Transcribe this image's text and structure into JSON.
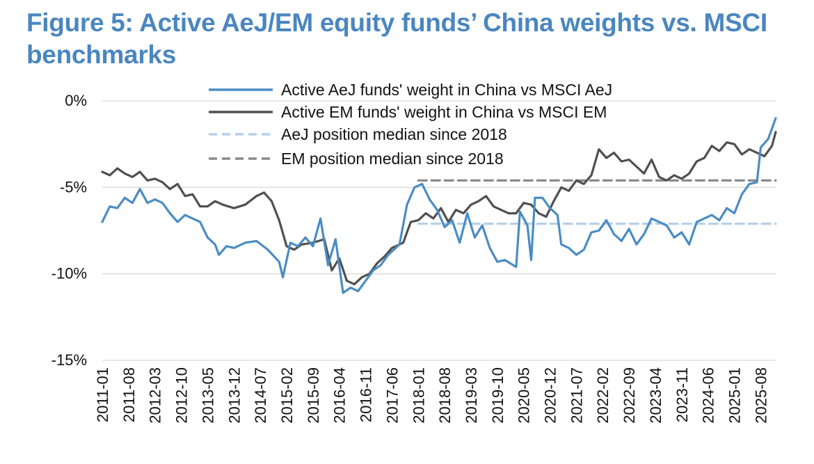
{
  "title_line1": "Figure 5: Active AeJ/EM equity funds’ China weights vs. MSCI",
  "title_line2": "benchmarks",
  "colors": {
    "title": "#4a86c0",
    "aej": "#4a8cc4",
    "em": "#4f4f4f",
    "aej_median": "#b5d0e8",
    "em_median": "#8a8a8a"
  },
  "chart_data": {
    "type": "line",
    "title": "Figure 5: Active AeJ/EM equity funds’ China weights vs. MSCI benchmarks",
    "xlabel": "",
    "ylabel": "",
    "ylim": [
      -15,
      0
    ],
    "y_ticks": [
      0,
      -5,
      -10,
      -15
    ],
    "y_tick_labels": [
      "0%",
      "-5%",
      "-10%",
      "-15%"
    ],
    "x_start": "2011-01",
    "x_end": "2025-12",
    "x_tick_labels": [
      "2011-01",
      "2011-08",
      "2012-03",
      "2012-10",
      "2013-05",
      "2013-12",
      "2014-07",
      "2015-02",
      "2015-09",
      "2016-04",
      "2016-11",
      "2017-06",
      "2018-01",
      "2018-08",
      "2019-03",
      "2019-10",
      "2020-05",
      "2020-12",
      "2021-07",
      "2022-02",
      "2022-09",
      "2023-04",
      "2023-11",
      "2024-06",
      "2025-01",
      "2025-08"
    ],
    "legend_position": "top-right",
    "grid": "horizontal",
    "series": [
      {
        "name": "Active AeJ funds' weight in China vs MSCI AeJ",
        "style": "solid",
        "color": "#4a8cc4",
        "points": [
          [
            "2011-01",
            -7.0
          ],
          [
            "2011-03",
            -6.1
          ],
          [
            "2011-05",
            -6.2
          ],
          [
            "2011-07",
            -5.6
          ],
          [
            "2011-09",
            -5.9
          ],
          [
            "2011-11",
            -5.1
          ],
          [
            "2012-01",
            -5.9
          ],
          [
            "2012-03",
            -5.7
          ],
          [
            "2012-05",
            -5.9
          ],
          [
            "2012-07",
            -6.5
          ],
          [
            "2012-09",
            -7.0
          ],
          [
            "2012-11",
            -6.6
          ],
          [
            "2013-01",
            -6.8
          ],
          [
            "2013-03",
            -7.0
          ],
          [
            "2013-05",
            -7.9
          ],
          [
            "2013-07",
            -8.3
          ],
          [
            "2013-08",
            -8.9
          ],
          [
            "2013-10",
            -8.4
          ],
          [
            "2013-12",
            -8.5
          ],
          [
            "2014-03",
            -8.2
          ],
          [
            "2014-06",
            -8.1
          ],
          [
            "2014-09",
            -8.6
          ],
          [
            "2014-12",
            -9.3
          ],
          [
            "2015-01",
            -10.2
          ],
          [
            "2015-03",
            -8.2
          ],
          [
            "2015-05",
            -8.4
          ],
          [
            "2015-07",
            -7.9
          ],
          [
            "2015-09",
            -8.4
          ],
          [
            "2015-11",
            -6.8
          ],
          [
            "2016-01",
            -9.5
          ],
          [
            "2016-03",
            -8.0
          ],
          [
            "2016-05",
            -11.1
          ],
          [
            "2016-07",
            -10.8
          ],
          [
            "2016-09",
            -11.0
          ],
          [
            "2016-11",
            -10.4
          ],
          [
            "2017-01",
            -9.8
          ],
          [
            "2017-03",
            -9.5
          ],
          [
            "2017-05",
            -8.9
          ],
          [
            "2017-08",
            -8.3
          ],
          [
            "2017-10",
            -6.0
          ],
          [
            "2017-12",
            -5.0
          ],
          [
            "2018-02",
            -4.8
          ],
          [
            "2018-04",
            -5.7
          ],
          [
            "2018-06",
            -6.3
          ],
          [
            "2018-08",
            -7.3
          ],
          [
            "2018-10",
            -6.9
          ],
          [
            "2018-12",
            -8.2
          ],
          [
            "2019-02",
            -6.5
          ],
          [
            "2019-04",
            -7.9
          ],
          [
            "2019-06",
            -7.2
          ],
          [
            "2019-08",
            -8.5
          ],
          [
            "2019-10",
            -9.3
          ],
          [
            "2019-12",
            -9.2
          ],
          [
            "2020-03",
            -9.6
          ],
          [
            "2020-04",
            -6.4
          ],
          [
            "2020-06",
            -7.2
          ],
          [
            "2020-07",
            -9.2
          ],
          [
            "2020-08",
            -5.6
          ],
          [
            "2020-10",
            -5.6
          ],
          [
            "2020-12",
            -6.2
          ],
          [
            "2021-02",
            -6.6
          ],
          [
            "2021-03",
            -8.3
          ],
          [
            "2021-05",
            -8.5
          ],
          [
            "2021-07",
            -8.9
          ],
          [
            "2021-09",
            -8.6
          ],
          [
            "2021-11",
            -7.6
          ],
          [
            "2022-01",
            -7.5
          ],
          [
            "2022-03",
            -6.9
          ],
          [
            "2022-05",
            -7.7
          ],
          [
            "2022-07",
            -8.1
          ],
          [
            "2022-09",
            -7.4
          ],
          [
            "2022-11",
            -8.3
          ],
          [
            "2023-01",
            -7.7
          ],
          [
            "2023-03",
            -6.8
          ],
          [
            "2023-05",
            -7.0
          ],
          [
            "2023-07",
            -7.2
          ],
          [
            "2023-09",
            -7.9
          ],
          [
            "2023-11",
            -7.6
          ],
          [
            "2024-01",
            -8.3
          ],
          [
            "2024-03",
            -7.0
          ],
          [
            "2024-05",
            -6.8
          ],
          [
            "2024-07",
            -6.6
          ],
          [
            "2024-09",
            -6.9
          ],
          [
            "2024-11",
            -6.2
          ],
          [
            "2025-01",
            -6.5
          ],
          [
            "2025-03",
            -5.4
          ],
          [
            "2025-05",
            -4.8
          ],
          [
            "2025-07",
            -4.7
          ],
          [
            "2025-08",
            -2.7
          ],
          [
            "2025-10",
            -2.2
          ],
          [
            "2025-12",
            -1.0
          ]
        ]
      },
      {
        "name": "Active EM funds' weight in China vs MSCI EM",
        "style": "solid",
        "color": "#4f4f4f",
        "points": [
          [
            "2011-01",
            -4.1
          ],
          [
            "2011-03",
            -4.3
          ],
          [
            "2011-05",
            -3.9
          ],
          [
            "2011-07",
            -4.2
          ],
          [
            "2011-09",
            -4.4
          ],
          [
            "2011-11",
            -4.1
          ],
          [
            "2012-01",
            -4.6
          ],
          [
            "2012-03",
            -4.5
          ],
          [
            "2012-05",
            -4.7
          ],
          [
            "2012-07",
            -5.1
          ],
          [
            "2012-09",
            -4.8
          ],
          [
            "2012-11",
            -5.5
          ],
          [
            "2013-01",
            -5.4
          ],
          [
            "2013-03",
            -6.1
          ],
          [
            "2013-05",
            -6.1
          ],
          [
            "2013-07",
            -5.8
          ],
          [
            "2013-09",
            -6.0
          ],
          [
            "2013-12",
            -6.2
          ],
          [
            "2014-03",
            -6.0
          ],
          [
            "2014-06",
            -5.5
          ],
          [
            "2014-08",
            -5.3
          ],
          [
            "2014-10",
            -5.8
          ],
          [
            "2014-12",
            -6.9
          ],
          [
            "2015-02",
            -8.4
          ],
          [
            "2015-04",
            -8.6
          ],
          [
            "2015-06",
            -8.3
          ],
          [
            "2015-09",
            -8.2
          ],
          [
            "2015-12",
            -8.0
          ],
          [
            "2016-02",
            -9.8
          ],
          [
            "2016-04",
            -9.1
          ],
          [
            "2016-06",
            -10.4
          ],
          [
            "2016-08",
            -10.6
          ],
          [
            "2016-10",
            -10.2
          ],
          [
            "2016-12",
            -10.0
          ],
          [
            "2017-02",
            -9.4
          ],
          [
            "2017-04",
            -9.0
          ],
          [
            "2017-06",
            -8.5
          ],
          [
            "2017-09",
            -8.2
          ],
          [
            "2017-11",
            -7.0
          ],
          [
            "2018-01",
            -6.9
          ],
          [
            "2018-03",
            -6.5
          ],
          [
            "2018-05",
            -6.8
          ],
          [
            "2018-07",
            -6.2
          ],
          [
            "2018-09",
            -7.0
          ],
          [
            "2018-11",
            -6.3
          ],
          [
            "2019-01",
            -6.5
          ],
          [
            "2019-03",
            -6.0
          ],
          [
            "2019-05",
            -5.8
          ],
          [
            "2019-07",
            -5.5
          ],
          [
            "2019-09",
            -6.1
          ],
          [
            "2019-11",
            -6.3
          ],
          [
            "2020-01",
            -6.5
          ],
          [
            "2020-03",
            -6.5
          ],
          [
            "2020-05",
            -5.9
          ],
          [
            "2020-07",
            -6.0
          ],
          [
            "2020-09",
            -6.5
          ],
          [
            "2020-11",
            -6.7
          ],
          [
            "2021-01",
            -5.8
          ],
          [
            "2021-03",
            -5.0
          ],
          [
            "2021-05",
            -5.2
          ],
          [
            "2021-07",
            -4.6
          ],
          [
            "2021-09",
            -4.8
          ],
          [
            "2021-11",
            -4.3
          ],
          [
            "2022-01",
            -2.8
          ],
          [
            "2022-03",
            -3.3
          ],
          [
            "2022-05",
            -3.0
          ],
          [
            "2022-07",
            -3.5
          ],
          [
            "2022-09",
            -3.4
          ],
          [
            "2022-11",
            -3.8
          ],
          [
            "2023-01",
            -4.2
          ],
          [
            "2023-03",
            -3.4
          ],
          [
            "2023-05",
            -4.4
          ],
          [
            "2023-07",
            -4.6
          ],
          [
            "2023-09",
            -4.3
          ],
          [
            "2023-11",
            -4.5
          ],
          [
            "2024-01",
            -4.2
          ],
          [
            "2024-03",
            -3.5
          ],
          [
            "2024-05",
            -3.3
          ],
          [
            "2024-07",
            -2.6
          ],
          [
            "2024-09",
            -2.9
          ],
          [
            "2024-11",
            -2.4
          ],
          [
            "2025-01",
            -2.5
          ],
          [
            "2025-03",
            -3.1
          ],
          [
            "2025-05",
            -2.8
          ],
          [
            "2025-07",
            -3.0
          ],
          [
            "2025-09",
            -3.2
          ],
          [
            "2025-11",
            -2.6
          ],
          [
            "2025-12",
            -1.8
          ]
        ]
      },
      {
        "name": "AeJ position median since 2018",
        "style": "dashed",
        "color": "#b5d0e8",
        "points": [
          [
            "2018-01",
            -7.1
          ],
          [
            "2025-12",
            -7.1
          ]
        ]
      },
      {
        "name": "EM position median since 2018",
        "style": "dashed",
        "color": "#8a8a8a",
        "points": [
          [
            "2018-01",
            -4.6
          ],
          [
            "2025-12",
            -4.6
          ]
        ]
      }
    ]
  }
}
